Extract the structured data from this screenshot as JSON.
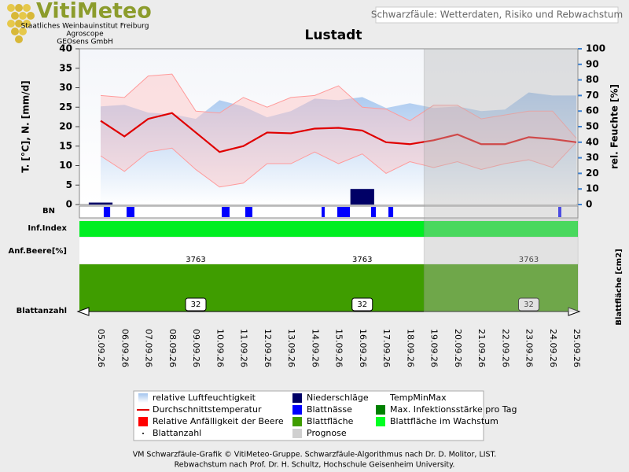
{
  "logo": {
    "title": "VitiMeteo",
    "lines": [
      "Staatliches Weinbauinstitut Freiburg",
      "Agroscope",
      "GEOsens GmbH"
    ]
  },
  "header_note": "Schwarzfäule: Wetterdaten, Risiko und Rebwachstum",
  "chart_data": {
    "type": "combo",
    "title": "Lustadt",
    "y_label": "T. [°C], N. [mm/d]",
    "y2_label": "rel. Feuchte [%]",
    "ylim": [
      0,
      40
    ],
    "yticks": [
      0,
      5,
      10,
      15,
      20,
      25,
      30,
      35,
      40
    ],
    "y2lim": [
      0,
      100
    ],
    "y2ticks": [
      0,
      10,
      20,
      30,
      40,
      50,
      60,
      70,
      80,
      90,
      100
    ],
    "categories": [
      "05.09.26",
      "06.09.26",
      "07.09.26",
      "08.09.26",
      "09.09.26",
      "10.09.26",
      "11.09.26",
      "12.09.26",
      "13.09.26",
      "14.09.26",
      "15.09.26",
      "16.09.26",
      "17.09.26",
      "18.09.26",
      "19.09.26",
      "20.09.26",
      "21.09.26",
      "22.09.26",
      "23.09.26",
      "24.09.26",
      "25.09.26"
    ],
    "series": [
      {
        "name": "relative Luftfeuchtigkeit",
        "color": "#a9c9ef",
        "axis": "y2",
        "kind": "area",
        "values": [
          63,
          64,
          59,
          58,
          55,
          67,
          63,
          56,
          60,
          68,
          67,
          69,
          62,
          65,
          62,
          63,
          60,
          61,
          72,
          70,
          70
        ]
      },
      {
        "name": "Durchschnittstemperatur",
        "color": "#e00000",
        "kind": "line",
        "values": [
          21.5,
          17.5,
          22,
          23.5,
          18.5,
          13.5,
          15,
          18.5,
          18.3,
          19.5,
          19.7,
          19,
          16,
          15.5,
          16.5,
          18,
          15.5,
          15.5,
          17.3,
          16.8,
          16
        ]
      },
      {
        "name": "Niederschläge",
        "color": "#000066",
        "kind": "bar",
        "values": [
          0.5,
          0,
          0,
          0,
          0,
          0,
          0,
          0,
          0,
          0,
          0,
          4,
          0,
          0,
          0,
          0,
          0,
          0,
          0,
          0,
          0
        ]
      },
      {
        "name": "TempMinMax",
        "color": "#ff9a9a",
        "kind": "band",
        "max": [
          28,
          27.5,
          33,
          33.5,
          24,
          23.5,
          27.5,
          25,
          27.5,
          28,
          30.5,
          25,
          24.5,
          21.5,
          25.5,
          25.5,
          22,
          23,
          24,
          24,
          17
        ],
        "min": [
          12.5,
          8.5,
          13.5,
          14.5,
          9,
          4.5,
          5.5,
          10.5,
          10.5,
          13.5,
          10.5,
          13,
          8,
          11,
          9.5,
          11,
          9,
          10.5,
          11.5,
          9.5,
          16
        ]
      }
    ],
    "legend_items": [
      {
        "name": "Blattnässe",
        "color": "#0000ff"
      },
      {
        "name": "Max. Infektionsstärke pro Tag",
        "color": "#008000"
      },
      {
        "name": "Relative Anfälligkeit der Beere",
        "color": "#ff0000"
      },
      {
        "name": "Blattfläche",
        "color": "#3f9d00"
      },
      {
        "name": "Blattfläche im Wachstum",
        "color": "#00ff22"
      },
      {
        "name": "Blattanzahl",
        "color": "#000000"
      },
      {
        "name": "Prognose",
        "color": "#d0d0d0"
      }
    ],
    "leaf_wetness": [
      [
        0.13,
        0.4
      ],
      [
        1.09,
        1.42
      ],
      [
        5.09,
        5.42
      ],
      [
        6.08,
        6.38
      ],
      [
        9.29,
        9.42
      ],
      [
        9.95,
        10.48
      ],
      [
        11.37,
        11.57
      ],
      [
        12.1,
        12.3
      ],
      [
        19.24,
        19.37
      ]
    ],
    "forecast_start": 13.6,
    "row_labels": {
      "bn": "BN",
      "inf": "Inf.Index",
      "berry": "Anf.Beere[%]",
      "count": "Blattanzahl"
    },
    "leaf_area_label": "Blattfläche [cm2]",
    "leaf_area": [
      null,
      null,
      null,
      null,
      3763,
      null,
      null,
      null,
      null,
      null,
      null,
      3763,
      null,
      null,
      null,
      null,
      null,
      null,
      3763,
      null,
      null
    ],
    "leaf_count": [
      null,
      null,
      null,
      null,
      32,
      null,
      null,
      null,
      null,
      null,
      null,
      32,
      null,
      null,
      null,
      null,
      null,
      null,
      32,
      null,
      null
    ]
  },
  "footer": [
    "VM Schwarzfäule-Grafik © VitiMeteo-Gruppe. Schwarzfäule-Algorithmus nach Dr. D. Molitor, LIST.",
    "Rebwachstum nach Prof. Dr. H. Schultz, Hochschule Geisenheim University."
  ]
}
